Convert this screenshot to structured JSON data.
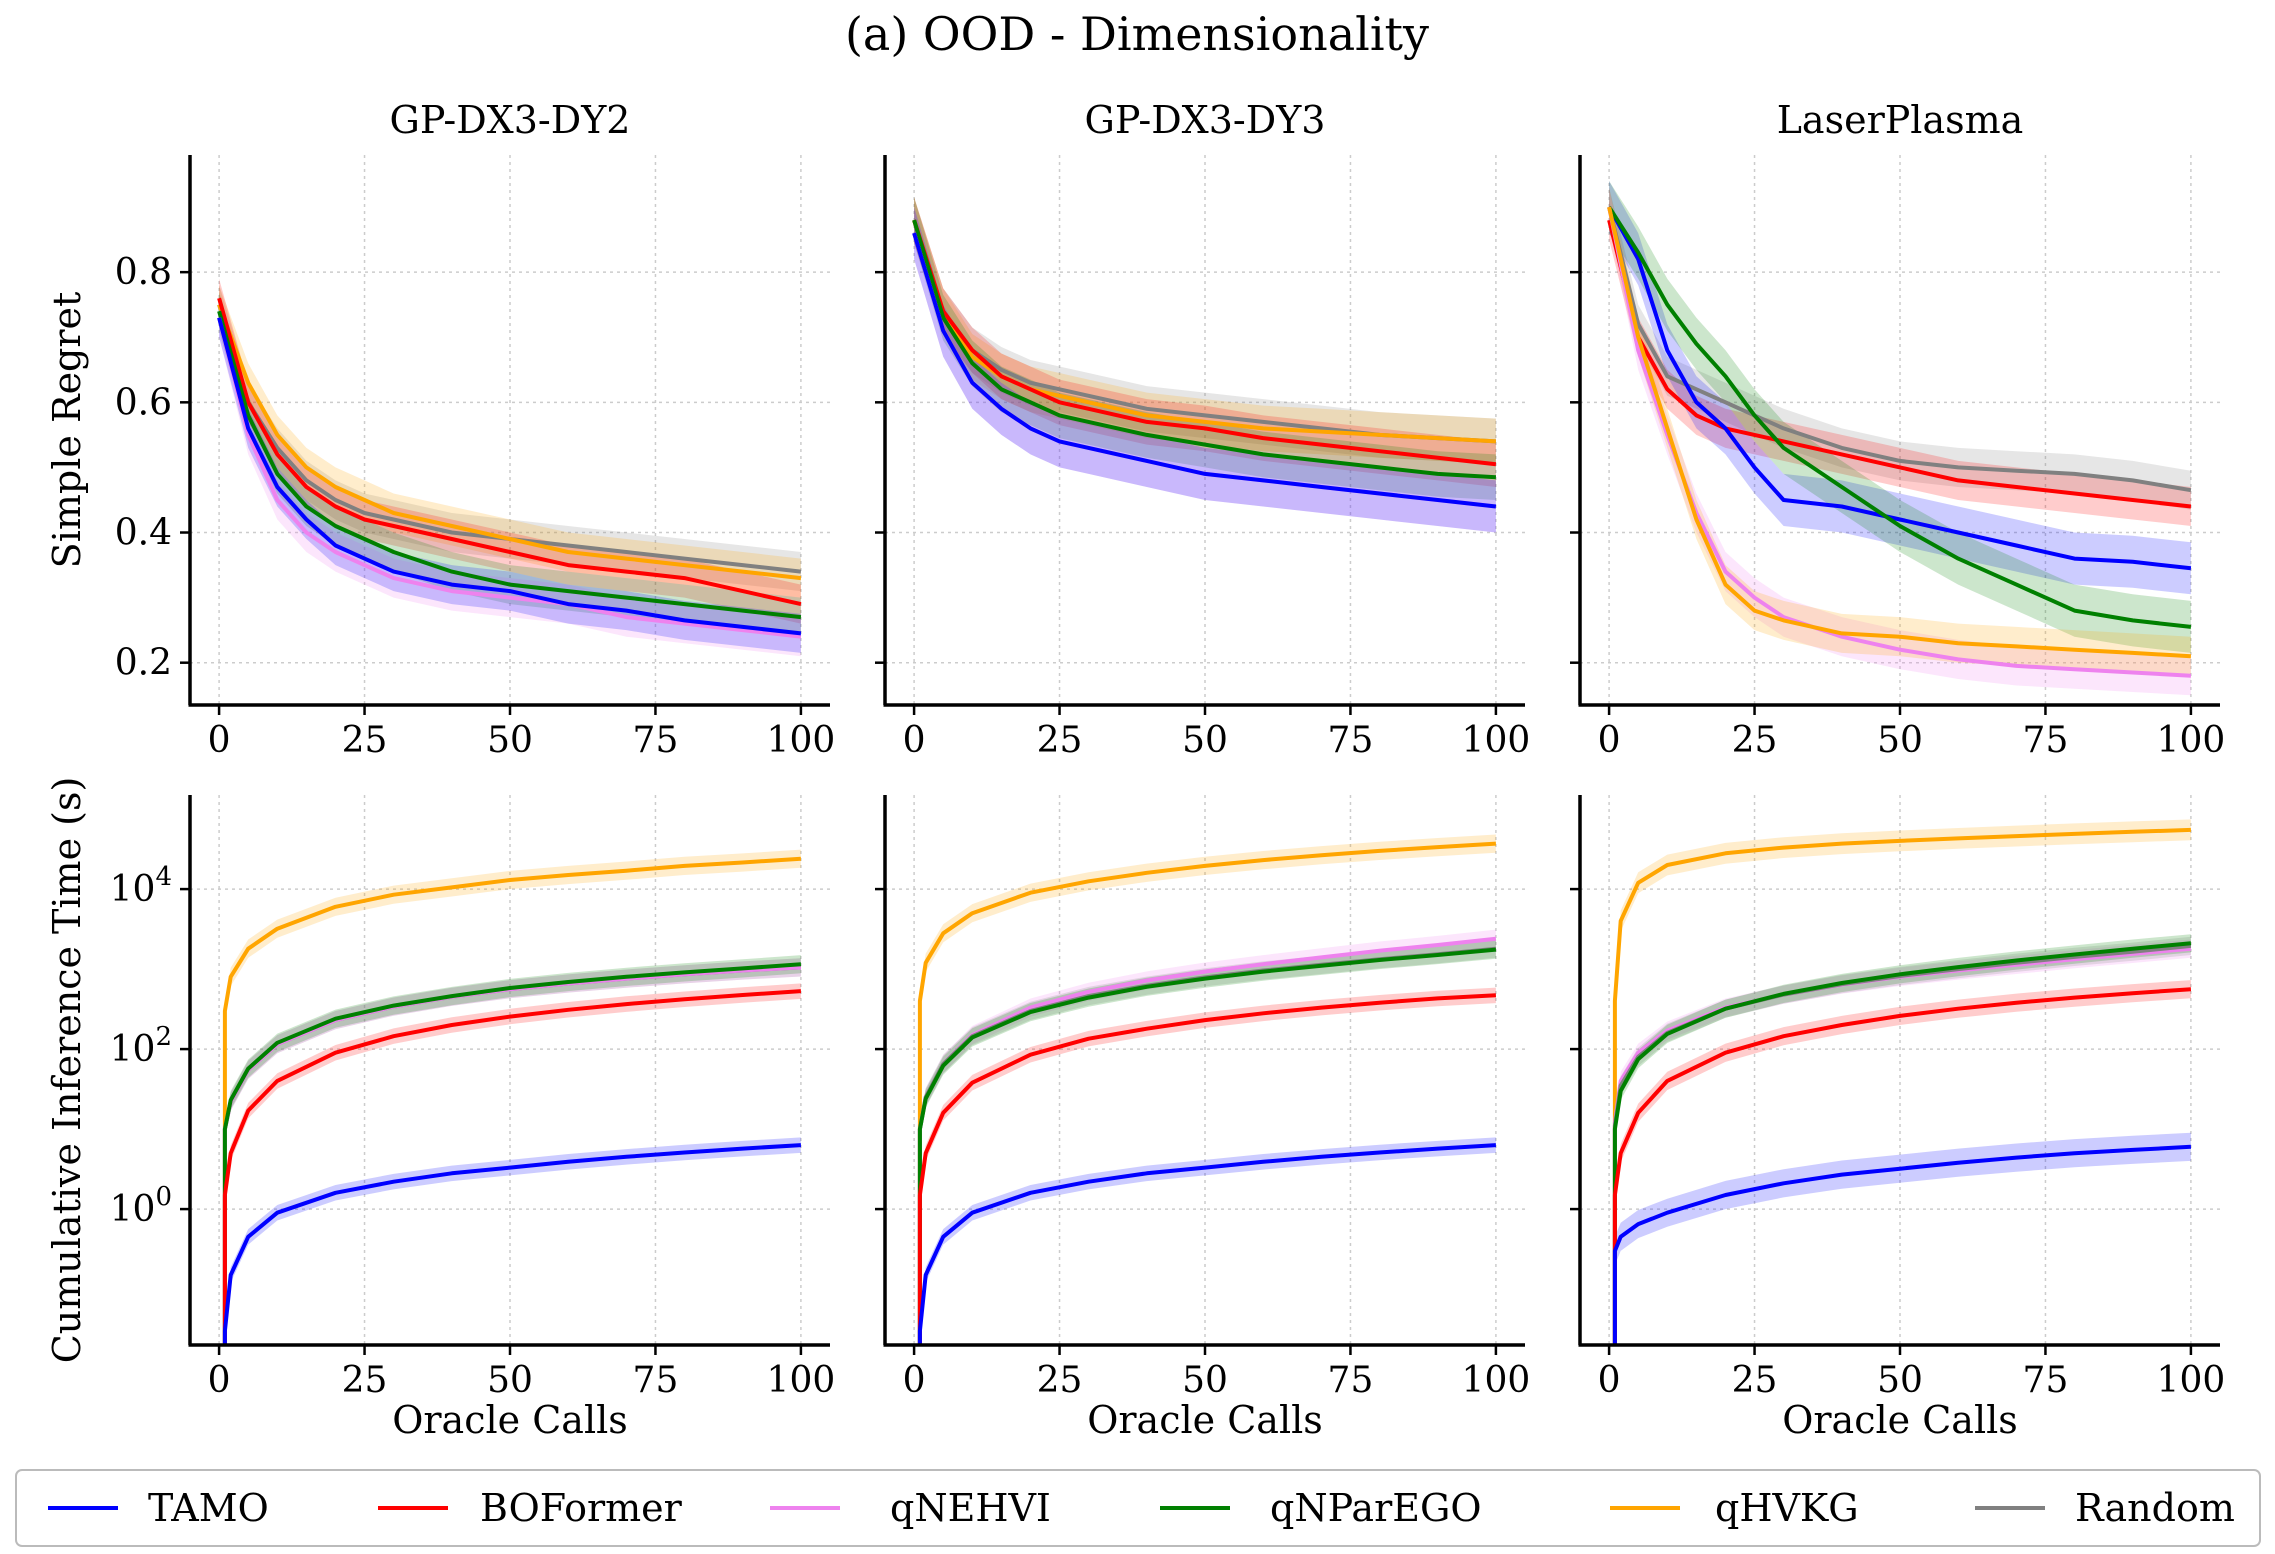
{
  "figure": {
    "title": "(a) OOD - Dimensionality",
    "xlabel": "Oracle Calls",
    "legend": [
      {
        "name": "TAMO",
        "color": "#0000ff"
      },
      {
        "name": "BOFormer",
        "color": "#ff0000"
      },
      {
        "name": "qNEHVI",
        "color": "#ee82ee"
      },
      {
        "name": "qNParEGO",
        "color": "#008000"
      },
      {
        "name": "qHVKG",
        "color": "#ffa500"
      },
      {
        "name": "Random",
        "color": "#808080"
      }
    ]
  },
  "chart_data": [
    {
      "type": "line",
      "title": "GP-DX3-DY2",
      "ylabel": "Simple Regret",
      "xlabel": "",
      "xlim": [
        -5,
        105
      ],
      "ylim": [
        0.135,
        0.98
      ],
      "xticks": [
        0,
        25,
        50,
        75,
        100
      ],
      "xtick_labels": [
        "0",
        "25",
        "50",
        "75",
        "100"
      ],
      "yticks": [
        0.2,
        0.4,
        0.6,
        0.8
      ],
      "ytick_labels": [
        "0.2",
        "0.4",
        "0.6",
        "0.8"
      ],
      "x": [
        0,
        5,
        10,
        15,
        20,
        25,
        30,
        40,
        50,
        60,
        70,
        80,
        90,
        100
      ],
      "series": [
        {
          "name": "Random",
          "color": "#808080",
          "band": 0.03,
          "values": [
            0.75,
            0.6,
            0.53,
            0.48,
            0.45,
            0.43,
            0.42,
            0.4,
            0.39,
            0.38,
            0.37,
            0.36,
            0.35,
            0.34
          ]
        },
        {
          "name": "qHVKG",
          "color": "#ffa500",
          "band": 0.03,
          "values": [
            0.75,
            0.63,
            0.55,
            0.5,
            0.47,
            0.45,
            0.43,
            0.41,
            0.39,
            0.37,
            0.36,
            0.35,
            0.34,
            0.33
          ]
        },
        {
          "name": "BOFormer",
          "color": "#ff0000",
          "band": 0.03,
          "values": [
            0.76,
            0.6,
            0.52,
            0.47,
            0.44,
            0.42,
            0.41,
            0.39,
            0.37,
            0.35,
            0.34,
            0.33,
            0.31,
            0.29
          ]
        },
        {
          "name": "qNParEGO",
          "color": "#008000",
          "band": 0.03,
          "values": [
            0.74,
            0.58,
            0.49,
            0.44,
            0.41,
            0.39,
            0.37,
            0.34,
            0.32,
            0.31,
            0.3,
            0.29,
            0.28,
            0.27
          ]
        },
        {
          "name": "qNEHVI",
          "color": "#ee82ee",
          "band": 0.03,
          "values": [
            0.73,
            0.55,
            0.45,
            0.4,
            0.37,
            0.35,
            0.33,
            0.31,
            0.3,
            0.29,
            0.27,
            0.26,
            0.25,
            0.24
          ]
        },
        {
          "name": "TAMO",
          "color": "#0000ff",
          "band": 0.03,
          "values": [
            0.73,
            0.56,
            0.47,
            0.42,
            0.38,
            0.36,
            0.34,
            0.32,
            0.31,
            0.29,
            0.28,
            0.265,
            0.255,
            0.245
          ]
        }
      ]
    },
    {
      "type": "line",
      "title": "GP-DX3-DY3",
      "ylabel": "",
      "xlabel": "",
      "xlim": [
        -5,
        105
      ],
      "ylim": [
        0.135,
        0.98
      ],
      "xticks": [
        0,
        25,
        50,
        75,
        100
      ],
      "xtick_labels": [
        "0",
        "25",
        "50",
        "75",
        "100"
      ],
      "yticks": [
        0.2,
        0.4,
        0.6,
        0.8
      ],
      "ytick_labels": [
        "",
        "",
        "",
        ""
      ],
      "x": [
        0,
        5,
        10,
        15,
        20,
        25,
        30,
        40,
        50,
        60,
        70,
        80,
        90,
        100
      ],
      "series": [
        {
          "name": "Random",
          "color": "#808080",
          "band": 0.035,
          "values": [
            0.88,
            0.74,
            0.68,
            0.65,
            0.63,
            0.62,
            0.61,
            0.59,
            0.58,
            0.57,
            0.56,
            0.55,
            0.545,
            0.54
          ]
        },
        {
          "name": "qHVKG",
          "color": "#ffa500",
          "band": 0.035,
          "values": [
            0.88,
            0.74,
            0.67,
            0.64,
            0.62,
            0.61,
            0.6,
            0.58,
            0.57,
            0.56,
            0.555,
            0.55,
            0.545,
            0.54
          ]
        },
        {
          "name": "BOFormer",
          "color": "#ff0000",
          "band": 0.035,
          "values": [
            0.88,
            0.74,
            0.68,
            0.64,
            0.62,
            0.6,
            0.59,
            0.57,
            0.56,
            0.545,
            0.535,
            0.525,
            0.515,
            0.505
          ]
        },
        {
          "name": "qNParEGO",
          "color": "#008000",
          "band": 0.035,
          "values": [
            0.88,
            0.73,
            0.66,
            0.62,
            0.6,
            0.58,
            0.57,
            0.55,
            0.535,
            0.52,
            0.51,
            0.5,
            0.49,
            0.485
          ]
        },
        {
          "name": "qNEHVI",
          "color": "#ee82ee",
          "band": 0.04,
          "values": [
            0.86,
            0.71,
            0.63,
            0.59,
            0.56,
            0.54,
            0.53,
            0.51,
            0.49,
            0.48,
            0.47,
            0.46,
            0.45,
            0.44
          ]
        },
        {
          "name": "TAMO",
          "color": "#0000ff",
          "band": 0.04,
          "values": [
            0.86,
            0.71,
            0.63,
            0.59,
            0.56,
            0.54,
            0.53,
            0.51,
            0.49,
            0.48,
            0.47,
            0.46,
            0.45,
            0.44
          ]
        }
      ]
    },
    {
      "type": "line",
      "title": "LaserPlasma",
      "ylabel": "",
      "xlabel": "",
      "xlim": [
        -5,
        105
      ],
      "ylim": [
        0.135,
        0.98
      ],
      "xticks": [
        0,
        25,
        50,
        75,
        100
      ],
      "xtick_labels": [
        "0",
        "25",
        "50",
        "75",
        "100"
      ],
      "yticks": [
        0.2,
        0.4,
        0.6,
        0.8
      ],
      "ytick_labels": [
        "",
        "",
        "",
        ""
      ],
      "x": [
        0,
        5,
        10,
        15,
        20,
        25,
        30,
        40,
        50,
        60,
        70,
        80,
        90,
        100
      ],
      "series": [
        {
          "name": "Random",
          "color": "#808080",
          "band": 0.03,
          "values": [
            0.9,
            0.72,
            0.64,
            0.62,
            0.6,
            0.58,
            0.56,
            0.53,
            0.51,
            0.5,
            0.495,
            0.49,
            0.48,
            0.465
          ]
        },
        {
          "name": "BOFormer",
          "color": "#ff0000",
          "band": 0.03,
          "values": [
            0.88,
            0.7,
            0.62,
            0.58,
            0.56,
            0.55,
            0.54,
            0.52,
            0.5,
            0.48,
            0.47,
            0.46,
            0.45,
            0.44
          ]
        },
        {
          "name": "TAMO",
          "color": "#0000ff",
          "band": 0.04,
          "values": [
            0.9,
            0.82,
            0.68,
            0.6,
            0.56,
            0.5,
            0.45,
            0.44,
            0.42,
            0.4,
            0.38,
            0.36,
            0.355,
            0.345
          ]
        },
        {
          "name": "qNParEGO",
          "color": "#008000",
          "band": 0.04,
          "values": [
            0.9,
            0.83,
            0.75,
            0.69,
            0.64,
            0.58,
            0.53,
            0.47,
            0.41,
            0.36,
            0.32,
            0.28,
            0.265,
            0.255
          ]
        },
        {
          "name": "qNEHVI",
          "color": "#ee82ee",
          "band": 0.03,
          "values": [
            0.9,
            0.68,
            0.55,
            0.43,
            0.34,
            0.3,
            0.27,
            0.24,
            0.22,
            0.205,
            0.195,
            0.19,
            0.185,
            0.18
          ]
        },
        {
          "name": "qHVKG",
          "color": "#ffa500",
          "band": 0.03,
          "values": [
            0.9,
            0.7,
            0.56,
            0.42,
            0.32,
            0.28,
            0.265,
            0.245,
            0.24,
            0.23,
            0.225,
            0.22,
            0.215,
            0.21
          ]
        }
      ]
    },
    {
      "type": "line",
      "title": "",
      "ylabel": "Cumulative Inference Time (s)",
      "xlabel": "Oracle Calls",
      "yscale": "log",
      "xlim": [
        -5,
        105
      ],
      "ylim": [
        0.02,
        150000
      ],
      "xticks": [
        0,
        25,
        50,
        75,
        100
      ],
      "xtick_labels": [
        "0",
        "25",
        "50",
        "75",
        "100"
      ],
      "yticks": [
        1,
        100,
        10000
      ],
      "ytick_labels": [
        "10^0",
        "10^2",
        "10^4"
      ],
      "x": [
        1,
        2,
        5,
        10,
        20,
        30,
        40,
        50,
        60,
        70,
        80,
        90,
        100
      ],
      "series": [
        {
          "name": "qHVKG",
          "color": "#ffa500",
          "band_factor": 1.3,
          "values": [
            300,
            800,
            1800,
            3200,
            6000,
            8500,
            10500,
            13000,
            15000,
            17000,
            19500,
            21500,
            24000
          ]
        },
        {
          "name": "Random",
          "color": "#808080",
          "band_factor": 1.3,
          "values": [
            10,
            22,
            55,
            115,
            230,
            340,
            450,
            560,
            660,
            760,
            860,
            960,
            1050
          ]
        },
        {
          "name": "qNEHVI",
          "color": "#ee82ee",
          "band_factor": 1.3,
          "values": [
            10,
            22,
            55,
            115,
            230,
            340,
            450,
            560,
            660,
            760,
            860,
            960,
            1050
          ]
        },
        {
          "name": "qNParEGO",
          "color": "#008000",
          "band_factor": 1.3,
          "values": [
            10,
            23,
            57,
            120,
            240,
            350,
            460,
            580,
            690,
            800,
            910,
            1020,
            1150
          ]
        },
        {
          "name": "BOFormer",
          "color": "#ff0000",
          "band_factor": 1.25,
          "values": [
            1.5,
            5,
            17,
            40,
            90,
            145,
            200,
            255,
            310,
            365,
            420,
            475,
            530
          ]
        },
        {
          "name": "TAMO",
          "color": "#0000ff",
          "band_factor": 1.25,
          "values": [
            0.03,
            0.15,
            0.45,
            0.9,
            1.6,
            2.2,
            2.8,
            3.3,
            3.9,
            4.5,
            5.1,
            5.7,
            6.3
          ]
        }
      ]
    },
    {
      "type": "line",
      "title": "",
      "ylabel": "",
      "xlabel": "Oracle Calls",
      "yscale": "log",
      "xlim": [
        -5,
        105
      ],
      "ylim": [
        0.02,
        150000
      ],
      "xticks": [
        0,
        25,
        50,
        75,
        100
      ],
      "xtick_labels": [
        "0",
        "25",
        "50",
        "75",
        "100"
      ],
      "yticks": [
        1,
        100,
        10000
      ],
      "ytick_labels": [
        "",
        "",
        ""
      ],
      "x": [
        1,
        2,
        5,
        10,
        20,
        30,
        40,
        50,
        60,
        70,
        80,
        90,
        100
      ],
      "series": [
        {
          "name": "qHVKG",
          "color": "#ffa500",
          "band_factor": 1.3,
          "values": [
            400,
            1200,
            2800,
            5000,
            9000,
            12500,
            16000,
            19500,
            23000,
            26500,
            30000,
            33500,
            37000
          ]
        },
        {
          "name": "qNEHVI",
          "color": "#ee82ee",
          "band_factor": 1.3,
          "values": [
            10,
            25,
            65,
            150,
            330,
            520,
            720,
            930,
            1150,
            1400,
            1700,
            2000,
            2400
          ]
        },
        {
          "name": "Random",
          "color": "#808080",
          "band_factor": 1.3,
          "values": [
            10,
            25,
            65,
            145,
            300,
            460,
            620,
            790,
            960,
            1130,
            1330,
            1530,
            1800
          ]
        },
        {
          "name": "qNParEGO",
          "color": "#008000",
          "band_factor": 1.3,
          "values": [
            10,
            24,
            62,
            140,
            290,
            440,
            600,
            760,
            930,
            1100,
            1300,
            1500,
            1750
          ]
        },
        {
          "name": "BOFormer",
          "color": "#ff0000",
          "band_factor": 1.25,
          "values": [
            1.5,
            5,
            16,
            38,
            85,
            135,
            180,
            230,
            280,
            330,
            380,
            430,
            470
          ]
        },
        {
          "name": "TAMO",
          "color": "#0000ff",
          "band_factor": 1.25,
          "values": [
            0.03,
            0.15,
            0.45,
            0.9,
            1.6,
            2.2,
            2.8,
            3.3,
            3.9,
            4.5,
            5.1,
            5.7,
            6.3
          ]
        }
      ]
    },
    {
      "type": "line",
      "title": "",
      "ylabel": "",
      "xlabel": "Oracle Calls",
      "yscale": "log",
      "xlim": [
        -5,
        105
      ],
      "ylim": [
        0.02,
        150000
      ],
      "xticks": [
        0,
        25,
        50,
        75,
        100
      ],
      "xtick_labels": [
        "0",
        "25",
        "50",
        "75",
        "100"
      ],
      "yticks": [
        1,
        100,
        10000
      ],
      "ytick_labels": [
        "",
        "",
        ""
      ],
      "x": [
        1,
        2,
        5,
        10,
        20,
        30,
        40,
        50,
        60,
        70,
        80,
        90,
        100
      ],
      "series": [
        {
          "name": "qHVKG",
          "color": "#ffa500",
          "band_factor": 1.35,
          "values": [
            400,
            4000,
            12000,
            20000,
            28000,
            33000,
            37000,
            40000,
            43000,
            46000,
            49000,
            52000,
            55000
          ]
        },
        {
          "name": "qNEHVI",
          "color": "#ee82ee",
          "band_factor": 1.3,
          "values": [
            12,
            40,
            90,
            170,
            330,
            480,
            640,
            800,
            960,
            1130,
            1330,
            1550,
            1800
          ]
        },
        {
          "name": "Random",
          "color": "#808080",
          "band_factor": 1.3,
          "values": [
            11,
            35,
            80,
            160,
            320,
            480,
            650,
            820,
            1000,
            1200,
            1420,
            1650,
            1950
          ]
        },
        {
          "name": "qNParEGO",
          "color": "#008000",
          "band_factor": 1.3,
          "values": [
            10,
            30,
            75,
            155,
            320,
            490,
            670,
            860,
            1060,
            1280,
            1520,
            1800,
            2100
          ]
        },
        {
          "name": "BOFormer",
          "color": "#ff0000",
          "band_factor": 1.3,
          "values": [
            1.5,
            5,
            16,
            40,
            90,
            145,
            200,
            260,
            320,
            380,
            440,
            500,
            560
          ]
        },
        {
          "name": "TAMO",
          "color": "#0000ff",
          "band_factor": 1.5,
          "values": [
            0.3,
            0.45,
            0.65,
            0.9,
            1.5,
            2.1,
            2.7,
            3.2,
            3.8,
            4.4,
            5.0,
            5.5,
            6.0
          ]
        }
      ]
    }
  ]
}
